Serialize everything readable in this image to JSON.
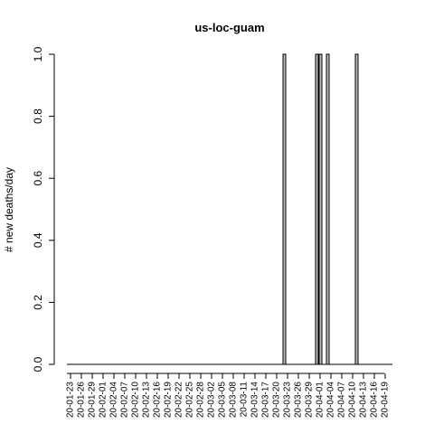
{
  "chart_data": {
    "type": "bar",
    "title": "us-loc-guam",
    "xlabel": "",
    "ylabel": "# new deaths/day",
    "ylim": [
      0,
      1
    ],
    "yticks": [
      "0.0",
      "0.2",
      "0.4",
      "0.6",
      "0.8",
      "1.0"
    ],
    "x_start": "2020-01-23",
    "x_end": "2020-04-21",
    "x_tick_labels": [
      "20-01-23",
      "20-01-26",
      "20-01-29",
      "20-02-01",
      "20-02-04",
      "20-02-07",
      "20-02-10",
      "20-02-13",
      "20-02-16",
      "20-02-19",
      "20-02-22",
      "20-02-25",
      "20-02-28",
      "20-03-02",
      "20-03-05",
      "20-03-08",
      "20-03-11",
      "20-03-14",
      "20-03-17",
      "20-03-20",
      "20-03-23",
      "20-03-26",
      "20-03-29",
      "20-04-01",
      "20-04-04",
      "20-04-07",
      "20-04-10",
      "20-04-13",
      "20-04-16",
      "20-04-19"
    ],
    "points": [
      {
        "date": "2020-03-22",
        "value": 1
      },
      {
        "date": "2020-03-31",
        "value": 1
      },
      {
        "date": "2020-04-01",
        "value": 1
      },
      {
        "date": "2020-04-03",
        "value": 1
      },
      {
        "date": "2020-04-11",
        "value": 1
      }
    ],
    "grid": false,
    "legend": "none"
  }
}
